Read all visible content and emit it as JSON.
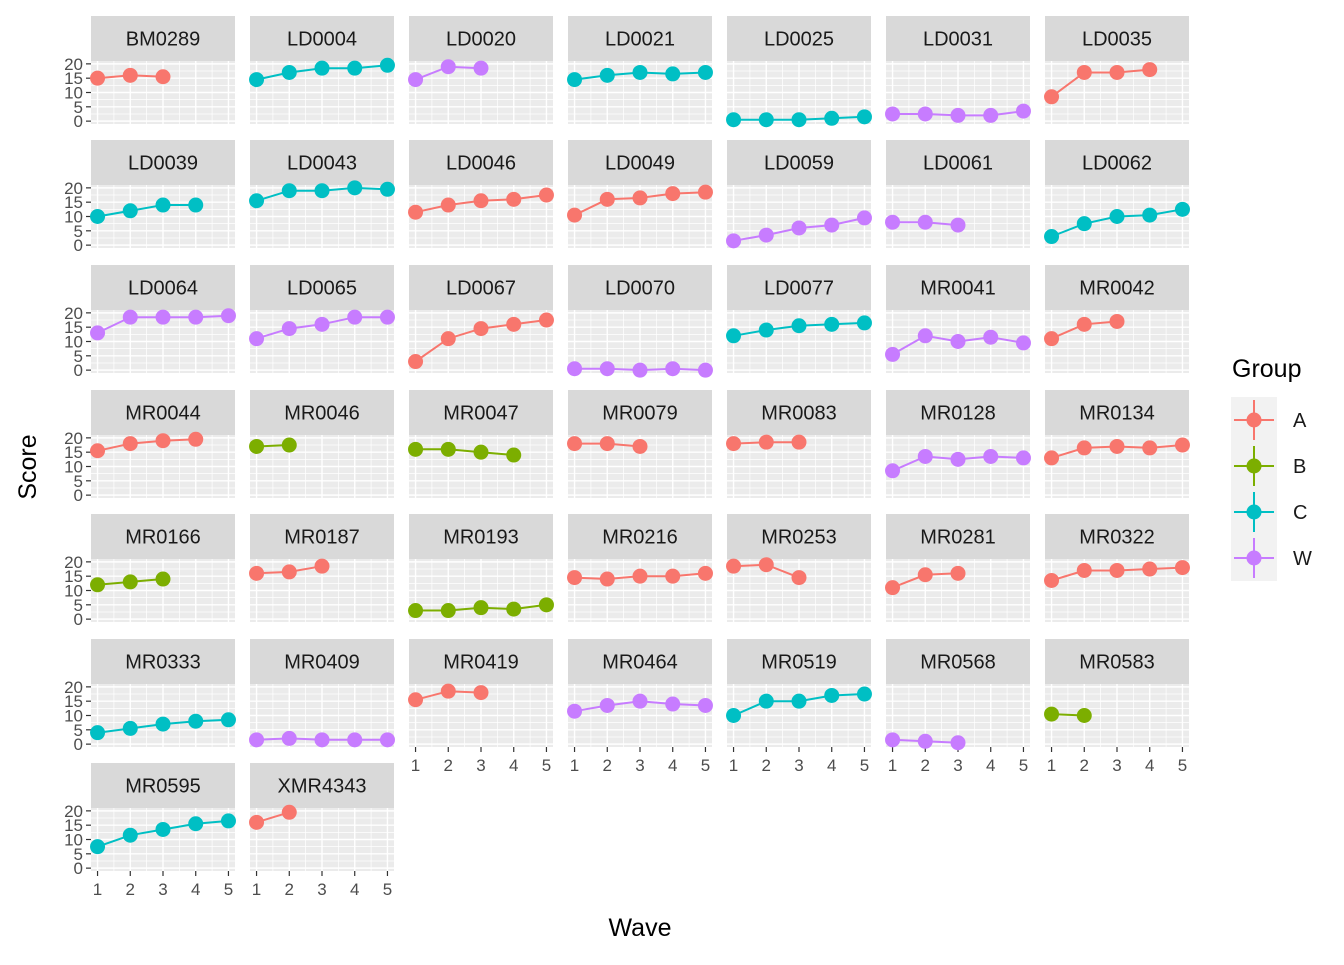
{
  "chart_data": {
    "type": "line",
    "facet_layout": "wrap",
    "xlabel": "Wave",
    "ylabel": "Score",
    "x_ticks": [
      1,
      2,
      3,
      4,
      5
    ],
    "y_ticks": [
      0,
      5,
      10,
      15,
      20
    ],
    "xlim": [
      1,
      5
    ],
    "ylim": [
      0,
      20
    ],
    "grid": true,
    "legend": {
      "title": "Group",
      "position": "right",
      "entries": [
        "A",
        "B",
        "C",
        "W"
      ]
    },
    "colors": {
      "A": "#F8766D",
      "B": "#7CAE00",
      "C": "#00BFC4",
      "W": "#C77CFF"
    },
    "panels": [
      {
        "id": "BM0289",
        "group": "A",
        "x": [
          1,
          2,
          3
        ],
        "y": [
          15,
          16,
          15.5
        ]
      },
      {
        "id": "LD0004",
        "group": "C",
        "x": [
          1,
          2,
          3,
          4,
          5
        ],
        "y": [
          14.5,
          17,
          18.5,
          18.5,
          19.5
        ]
      },
      {
        "id": "LD0020",
        "group": "W",
        "x": [
          1,
          2,
          3
        ],
        "y": [
          14.5,
          19,
          18.5
        ]
      },
      {
        "id": "LD0021",
        "group": "C",
        "x": [
          1,
          2,
          3,
          4,
          5
        ],
        "y": [
          14.5,
          16,
          17,
          16.5,
          17
        ]
      },
      {
        "id": "LD0025",
        "group": "C",
        "x": [
          1,
          2,
          3,
          4,
          5
        ],
        "y": [
          0.5,
          0.5,
          0.5,
          1,
          1.5
        ]
      },
      {
        "id": "LD0031",
        "group": "W",
        "x": [
          1,
          2,
          3,
          4,
          5
        ],
        "y": [
          2.5,
          2.5,
          2,
          2,
          3.5
        ]
      },
      {
        "id": "LD0035",
        "group": "A",
        "x": [
          1,
          2,
          3,
          4
        ],
        "y": [
          8.5,
          17,
          17,
          18
        ]
      },
      {
        "id": "LD0039",
        "group": "C",
        "x": [
          1,
          2,
          3,
          4
        ],
        "y": [
          10,
          12,
          14,
          14
        ]
      },
      {
        "id": "LD0043",
        "group": "C",
        "x": [
          1,
          2,
          3,
          4,
          5
        ],
        "y": [
          15.5,
          19,
          19,
          20,
          19.5
        ]
      },
      {
        "id": "LD0046",
        "group": "A",
        "x": [
          1,
          2,
          3,
          4,
          5
        ],
        "y": [
          11.5,
          14,
          15.5,
          16,
          17.5
        ]
      },
      {
        "id": "LD0049",
        "group": "A",
        "x": [
          1,
          2,
          3,
          4,
          5
        ],
        "y": [
          10.5,
          16,
          16.5,
          18,
          18.5
        ]
      },
      {
        "id": "LD0059",
        "group": "W",
        "x": [
          1,
          2,
          3,
          4,
          5
        ],
        "y": [
          1.5,
          3.5,
          6,
          7,
          9.5
        ]
      },
      {
        "id": "LD0061",
        "group": "W",
        "x": [
          1,
          2,
          3
        ],
        "y": [
          8,
          8,
          7
        ]
      },
      {
        "id": "LD0062",
        "group": "C",
        "x": [
          1,
          2,
          3,
          4,
          5
        ],
        "y": [
          3,
          7.5,
          10,
          10.5,
          12.5
        ]
      },
      {
        "id": "LD0064",
        "group": "W",
        "x": [
          1,
          2,
          3,
          4,
          5
        ],
        "y": [
          13,
          18.5,
          18.5,
          18.5,
          19
        ]
      },
      {
        "id": "LD0065",
        "group": "W",
        "x": [
          1,
          2,
          3,
          4,
          5
        ],
        "y": [
          11,
          14.5,
          16,
          18.5,
          18.5
        ]
      },
      {
        "id": "LD0067",
        "group": "A",
        "x": [
          1,
          2,
          3,
          4,
          5
        ],
        "y": [
          3,
          11,
          14.5,
          16,
          17.5
        ]
      },
      {
        "id": "LD0070",
        "group": "W",
        "x": [
          1,
          2,
          3,
          4,
          5
        ],
        "y": [
          0.5,
          0.5,
          0,
          0.5,
          0
        ]
      },
      {
        "id": "LD0077",
        "group": "C",
        "x": [
          1,
          2,
          3,
          4,
          5
        ],
        "y": [
          12,
          14,
          15.5,
          16,
          16.5
        ]
      },
      {
        "id": "MR0041",
        "group": "W",
        "x": [
          1,
          2,
          3,
          4,
          5
        ],
        "y": [
          5.5,
          12,
          10,
          11.5,
          9.5
        ]
      },
      {
        "id": "MR0042",
        "group": "A",
        "x": [
          1,
          2,
          3
        ],
        "y": [
          11,
          16,
          17
        ]
      },
      {
        "id": "MR0044",
        "group": "A",
        "x": [
          1,
          2,
          3,
          4
        ],
        "y": [
          15.5,
          18,
          19,
          19.5
        ]
      },
      {
        "id": "MR0046",
        "group": "B",
        "x": [
          1,
          2
        ],
        "y": [
          17,
          17.5
        ]
      },
      {
        "id": "MR0047",
        "group": "B",
        "x": [
          1,
          2,
          3,
          4
        ],
        "y": [
          16,
          16,
          15,
          14
        ]
      },
      {
        "id": "MR0079",
        "group": "A",
        "x": [
          1,
          2,
          3
        ],
        "y": [
          18,
          18,
          17
        ]
      },
      {
        "id": "MR0083",
        "group": "A",
        "x": [
          1,
          2,
          3
        ],
        "y": [
          18,
          18.5,
          18.5
        ]
      },
      {
        "id": "MR0128",
        "group": "W",
        "x": [
          1,
          2,
          3,
          4,
          5
        ],
        "y": [
          8.5,
          13.5,
          12.5,
          13.5,
          13
        ]
      },
      {
        "id": "MR0134",
        "group": "A",
        "x": [
          1,
          2,
          3,
          4,
          5
        ],
        "y": [
          13,
          16.5,
          17,
          16.5,
          17.5
        ]
      },
      {
        "id": "MR0166",
        "group": "B",
        "x": [
          1,
          2,
          3
        ],
        "y": [
          12,
          13,
          14
        ]
      },
      {
        "id": "MR0187",
        "group": "A",
        "x": [
          1,
          2,
          3
        ],
        "y": [
          16,
          16.5,
          18.5
        ]
      },
      {
        "id": "MR0193",
        "group": "B",
        "x": [
          1,
          2,
          3,
          4,
          5
        ],
        "y": [
          3,
          3,
          4,
          3.5,
          5
        ]
      },
      {
        "id": "MR0216",
        "group": "A",
        "x": [
          1,
          2,
          3,
          4,
          5
        ],
        "y": [
          14.5,
          14,
          15,
          15,
          16
        ]
      },
      {
        "id": "MR0253",
        "group": "A",
        "x": [
          1,
          2,
          3
        ],
        "y": [
          18.5,
          19,
          14.5
        ]
      },
      {
        "id": "MR0281",
        "group": "A",
        "x": [
          1,
          2,
          3
        ],
        "y": [
          11,
          15.5,
          16
        ]
      },
      {
        "id": "MR0322",
        "group": "A",
        "x": [
          1,
          2,
          3,
          4,
          5
        ],
        "y": [
          13.5,
          17,
          17,
          17.5,
          18
        ]
      },
      {
        "id": "MR0333",
        "group": "C",
        "x": [
          1,
          2,
          3,
          4,
          5
        ],
        "y": [
          4,
          5.5,
          7,
          8,
          8.5
        ]
      },
      {
        "id": "MR0409",
        "group": "W",
        "x": [
          1,
          2,
          3,
          4,
          5
        ],
        "y": [
          1.5,
          2,
          1.5,
          1.5,
          1.5
        ]
      },
      {
        "id": "MR0419",
        "group": "A",
        "x": [
          1,
          2,
          3
        ],
        "y": [
          15.5,
          18.5,
          18
        ]
      },
      {
        "id": "MR0464",
        "group": "W",
        "x": [
          1,
          2,
          3,
          4,
          5
        ],
        "y": [
          11.5,
          13.5,
          15,
          14,
          13.5
        ]
      },
      {
        "id": "MR0519",
        "group": "C",
        "x": [
          1,
          2,
          3,
          4,
          5
        ],
        "y": [
          10,
          15,
          15,
          17,
          17.5
        ]
      },
      {
        "id": "MR0568",
        "group": "W",
        "x": [
          1,
          2,
          3
        ],
        "y": [
          1.5,
          1,
          0.5
        ]
      },
      {
        "id": "MR0583",
        "group": "B",
        "x": [
          1,
          2
        ],
        "y": [
          10.5,
          10
        ]
      },
      {
        "id": "MR0595",
        "group": "C",
        "x": [
          1,
          2,
          3,
          4,
          5
        ],
        "y": [
          7.5,
          11.5,
          13.5,
          15.5,
          16.5
        ]
      },
      {
        "id": "XMR4343",
        "group": "A",
        "x": [
          1,
          2
        ],
        "y": [
          16,
          19.5
        ]
      }
    ]
  }
}
